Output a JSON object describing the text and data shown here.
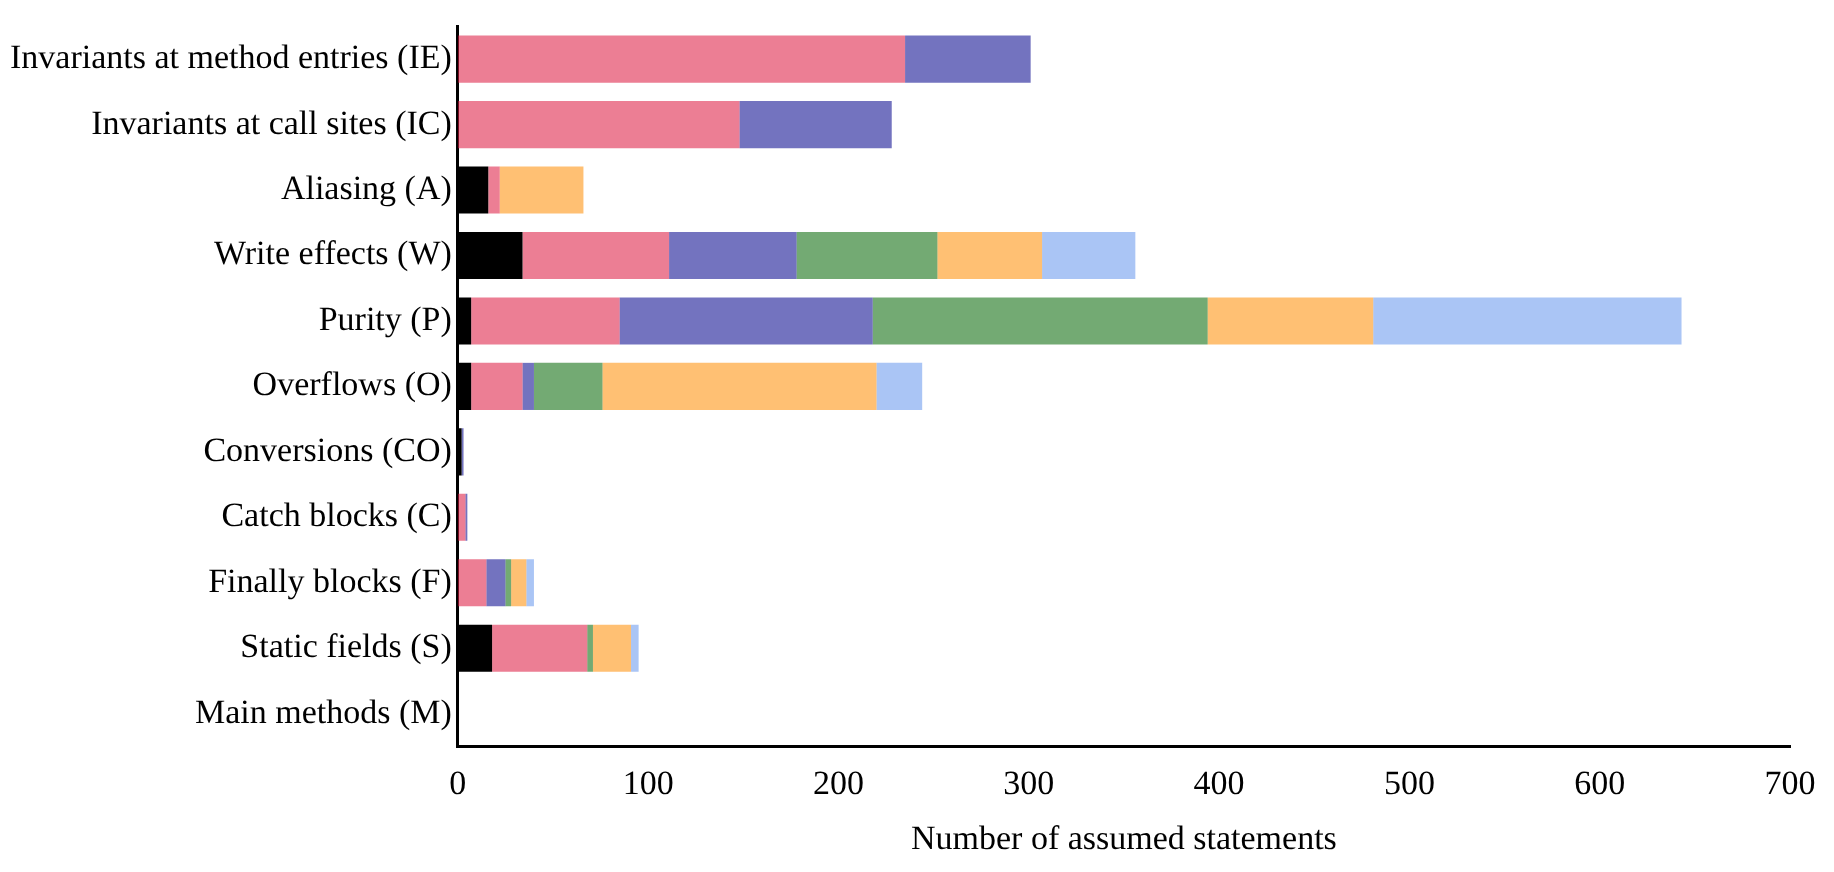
{
  "chart_data": {
    "type": "bar",
    "orientation": "horizontal",
    "stacked": true,
    "categories": [
      "Invariants at method entries (IE)",
      "Invariants at call sites (IC)",
      "Aliasing (A)",
      "Write effects (W)",
      "Purity (P)",
      "Overflows (O)",
      "Conversions (CO)",
      "Catch blocks (C)",
      "Finally blocks (F)",
      "Static fields (S)",
      "Main methods (M)"
    ],
    "series": [
      {
        "color": "#000000",
        "values": [
          null,
          null,
          16,
          34,
          7,
          7,
          2,
          null,
          null,
          18,
          0
        ]
      },
      {
        "color": "#dc143c",
        "values": [
          235,
          148,
          6,
          77,
          78,
          27,
          null,
          4,
          15,
          50,
          null
        ]
      },
      {
        "color": "#00008b",
        "values": [
          66,
          80,
          null,
          67,
          133,
          6,
          1,
          1,
          10,
          null,
          null
        ]
      },
      {
        "color": "#006400",
        "values": [
          null,
          null,
          null,
          74,
          176,
          36,
          null,
          null,
          3,
          3,
          null
        ]
      },
      {
        "color": "#ff8c00",
        "values": [
          null,
          null,
          44,
          55,
          87,
          144,
          null,
          null,
          8,
          20,
          null
        ]
      },
      {
        "color": "#6495ed",
        "values": [
          null,
          null,
          null,
          49,
          162,
          24,
          null,
          null,
          4,
          4,
          null
        ]
      }
    ],
    "xlabel": "Number of assumed statements",
    "xlim": [
      0,
      700
    ],
    "xticks": [
      0,
      100,
      200,
      300,
      400,
      500,
      600,
      700
    ],
    "grid": false,
    "legend": false
  }
}
